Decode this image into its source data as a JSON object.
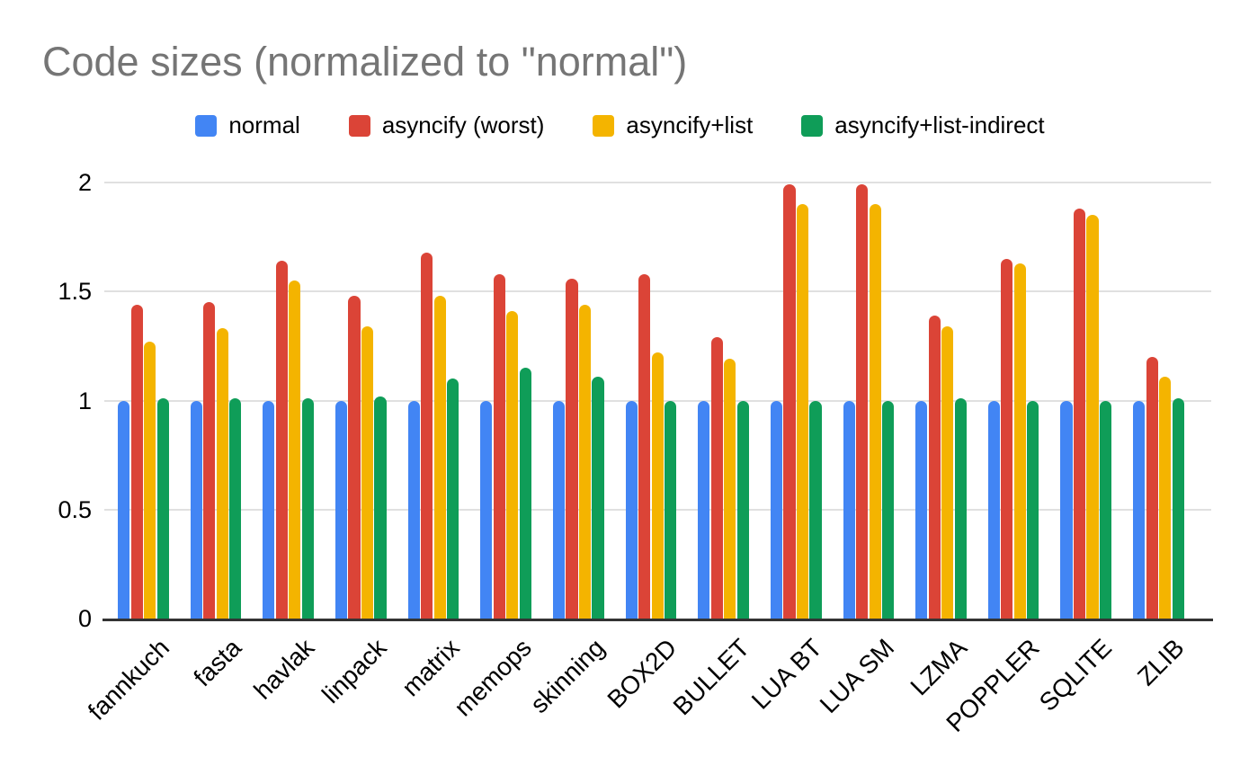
{
  "chart": {
    "title": "Code sizes (normalized to \"normal\")"
  },
  "theme": {
    "title_color": "#757575",
    "grid_color": "#e0e0e0",
    "axis_color": "#333333",
    "background": "#ffffff",
    "label_color": "#000000"
  },
  "chart_data": {
    "type": "bar",
    "title": "Code sizes (normalized to \"normal\")",
    "xlabel": "",
    "ylabel": "",
    "ylim": [
      0,
      2
    ],
    "yticks": [
      0,
      0.5,
      1,
      1.5,
      2
    ],
    "grid": true,
    "legend_position": "top",
    "categories": [
      "fannkuch",
      "fasta",
      "havlak",
      "linpack",
      "matrix",
      "memops",
      "skinning",
      "BOX2D",
      "BULLET",
      "LUA BT",
      "LUA SM",
      "LZMA",
      "POPPLER",
      "SQLITE",
      "ZLIB"
    ],
    "series": [
      {
        "name": "normal",
        "color": "#4285F4",
        "values": [
          1.0,
          1.0,
          1.0,
          1.0,
          1.0,
          1.0,
          1.0,
          1.0,
          1.0,
          1.0,
          1.0,
          1.0,
          1.0,
          1.0,
          1.0
        ]
      },
      {
        "name": "asyncify (worst)",
        "color": "#DB4437",
        "values": [
          1.44,
          1.45,
          1.64,
          1.48,
          1.68,
          1.58,
          1.56,
          1.58,
          1.29,
          1.99,
          1.99,
          1.39,
          1.65,
          1.88,
          1.2
        ]
      },
      {
        "name": "asyncify+list",
        "color": "#F4B400",
        "values": [
          1.27,
          1.33,
          1.55,
          1.34,
          1.48,
          1.41,
          1.44,
          1.22,
          1.19,
          1.9,
          1.9,
          1.34,
          1.63,
          1.85,
          1.11
        ]
      },
      {
        "name": "asyncify+list-indirect",
        "color": "#0F9D58",
        "values": [
          1.01,
          1.01,
          1.01,
          1.02,
          1.1,
          1.15,
          1.11,
          1.0,
          1.0,
          1.0,
          1.0,
          1.01,
          1.0,
          1.0,
          1.01
        ]
      }
    ]
  }
}
